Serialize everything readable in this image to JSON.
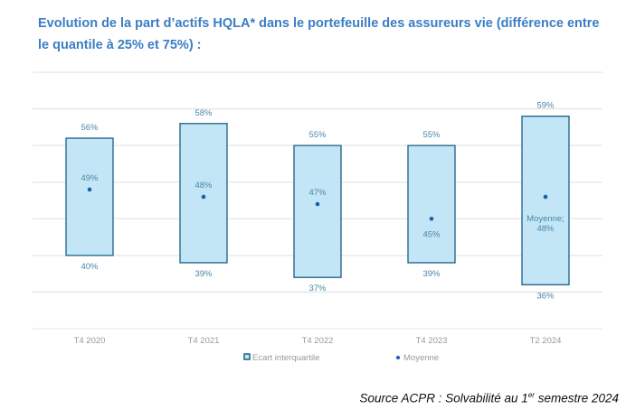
{
  "title": "Evolution de la part d’actifs HQLA* dans le portefeuille des assureurs vie (différence entre le quantile à 25% et 75%) :",
  "source": {
    "text": "Source ACPR : Solvabilité au 1",
    "sup": "er",
    "rest": " semestre 2024"
  },
  "colors": {
    "bar_fill": "#c2e6f6",
    "bar_stroke": "#1b5f86",
    "dot": "#1a5fae",
    "label": "#4a86a8",
    "axis_text": "#999999",
    "grid": "#e6e6e6"
  },
  "chart_data": {
    "type": "floating-bar",
    "title": "",
    "categories": [
      "T4 2020",
      "T4 2021",
      "T4 2022",
      "T4 2023",
      "T2 2024"
    ],
    "series": [
      {
        "name": "Ecart interquartile",
        "low": [
          40,
          39,
          37,
          39,
          36
        ],
        "high": [
          56,
          58,
          55,
          55,
          59
        ]
      },
      {
        "name": "Moyenne",
        "values": [
          49,
          48,
          47,
          45,
          48
        ]
      }
    ],
    "mean_labels": [
      "49%",
      "48%",
      "47%",
      "45%",
      "Moyenne; 48%"
    ],
    "ylim": [
      30,
      65
    ],
    "grid": true,
    "y_axis_labels_shown": false,
    "legend": "bottom"
  }
}
